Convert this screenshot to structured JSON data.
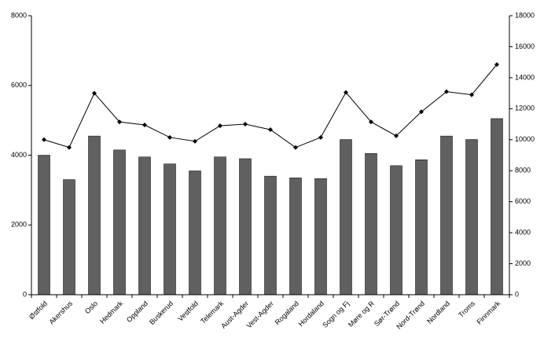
{
  "chart_data": {
    "type": "bar-line",
    "categories": [
      "Østfold",
      "Akershus",
      "Oslo",
      "Hedmark",
      "Oppland",
      "Buskerud",
      "Vestfold",
      "Telemark",
      "Aust-Agder",
      "Vest-Agder",
      "Rogaland",
      "Hordaland",
      "Sogn og Fj",
      "Møre og R",
      "Sør-Trønd",
      "Nord-Trønd",
      "Nordland",
      "Troms",
      "Finnmark"
    ],
    "series": [
      {
        "type": "bar",
        "color": "#606060",
        "axis": "y",
        "values": [
          4000,
          3300,
          4550,
          4150,
          3950,
          3750,
          3550,
          3950,
          3900,
          3400,
          3350,
          3330,
          4450,
          4050,
          3700,
          3870,
          4550,
          4450,
          5050
        ]
      },
      {
        "type": "line",
        "color": "#000000",
        "axis": "y2",
        "values": [
          10000,
          9500,
          13000,
          11150,
          10950,
          10150,
          9900,
          10900,
          11000,
          10650,
          9500,
          10150,
          13050,
          11150,
          10250,
          11800,
          13100,
          12900,
          14850
        ]
      }
    ],
    "ylim": [
      0,
      8000
    ],
    "yticks": [
      0,
      2000,
      4000,
      6000,
      8000
    ],
    "y2lim": [
      0,
      18000
    ],
    "y2ticks": [
      0,
      2000,
      4000,
      6000,
      8000,
      10000,
      12000,
      14000,
      16000,
      18000
    ],
    "grid": false
  }
}
